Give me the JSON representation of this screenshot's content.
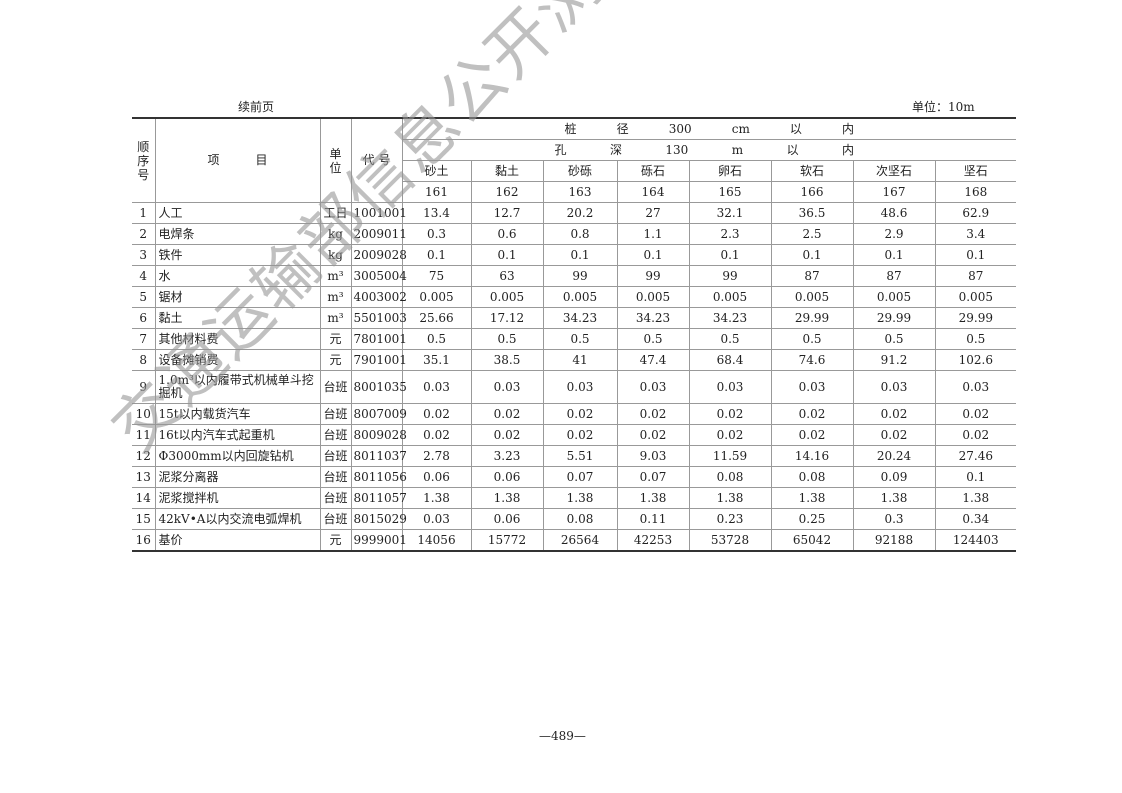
{
  "continued_label": "续前页",
  "unit_note": "单位：10m",
  "headers": {
    "seq": "顺序号",
    "item": "项　　　目",
    "unit": "单位",
    "code": "代 号",
    "span1": [
      "桩",
      "径",
      "300",
      "cm",
      "以",
      "内"
    ],
    "span2": [
      "孔",
      "深",
      "130",
      "m",
      "以",
      "内"
    ],
    "categories": [
      "砂土",
      "黏土",
      "砂砾",
      "砾石",
      "卵石",
      "软石",
      "次坚石",
      "坚石"
    ],
    "numbers": [
      "161",
      "162",
      "163",
      "164",
      "165",
      "166",
      "167",
      "168"
    ]
  },
  "rows": [
    {
      "seq": "1",
      "item": "人工",
      "unit": "工日",
      "code": "1001001",
      "values": [
        "13.4",
        "12.7",
        "20.2",
        "27",
        "32.1",
        "36.5",
        "48.6",
        "62.9"
      ]
    },
    {
      "seq": "2",
      "item": "电焊条",
      "unit": "kg",
      "code": "2009011",
      "values": [
        "0.3",
        "0.6",
        "0.8",
        "1.1",
        "2.3",
        "2.5",
        "2.9",
        "3.4"
      ]
    },
    {
      "seq": "3",
      "item": "铁件",
      "unit": "kg",
      "code": "2009028",
      "values": [
        "0.1",
        "0.1",
        "0.1",
        "0.1",
        "0.1",
        "0.1",
        "0.1",
        "0.1"
      ]
    },
    {
      "seq": "4",
      "item": "水",
      "unit": "m³",
      "code": "3005004",
      "values": [
        "75",
        "63",
        "99",
        "99",
        "99",
        "87",
        "87",
        "87"
      ]
    },
    {
      "seq": "5",
      "item": "锯材",
      "unit": "m³",
      "code": "4003002",
      "values": [
        "0.005",
        "0.005",
        "0.005",
        "0.005",
        "0.005",
        "0.005",
        "0.005",
        "0.005"
      ]
    },
    {
      "seq": "6",
      "item": "黏土",
      "unit": "m³",
      "code": "5501003",
      "values": [
        "25.66",
        "17.12",
        "34.23",
        "34.23",
        "34.23",
        "29.99",
        "29.99",
        "29.99"
      ]
    },
    {
      "seq": "7",
      "item": "其他材料费",
      "unit": "元",
      "code": "7801001",
      "values": [
        "0.5",
        "0.5",
        "0.5",
        "0.5",
        "0.5",
        "0.5",
        "0.5",
        "0.5"
      ]
    },
    {
      "seq": "8",
      "item": "设备摊销费",
      "unit": "元",
      "code": "7901001",
      "values": [
        "35.1",
        "38.5",
        "41",
        "47.4",
        "68.4",
        "74.6",
        "91.2",
        "102.6"
      ]
    },
    {
      "seq": "9",
      "item": "1.0m³以内履带式机械单斗挖掘机",
      "unit": "台班",
      "code": "8001035",
      "values": [
        "0.03",
        "0.03",
        "0.03",
        "0.03",
        "0.03",
        "0.03",
        "0.03",
        "0.03"
      ]
    },
    {
      "seq": "10",
      "item": "15t以内载货汽车",
      "unit": "台班",
      "code": "8007009",
      "values": [
        "0.02",
        "0.02",
        "0.02",
        "0.02",
        "0.02",
        "0.02",
        "0.02",
        "0.02"
      ]
    },
    {
      "seq": "11",
      "item": "16t以内汽车式起重机",
      "unit": "台班",
      "code": "8009028",
      "values": [
        "0.02",
        "0.02",
        "0.02",
        "0.02",
        "0.02",
        "0.02",
        "0.02",
        "0.02"
      ]
    },
    {
      "seq": "12",
      "item": "Φ3000mm以内回旋钻机",
      "unit": "台班",
      "code": "8011037",
      "values": [
        "2.78",
        "3.23",
        "5.51",
        "9.03",
        "11.59",
        "14.16",
        "20.24",
        "27.46"
      ]
    },
    {
      "seq": "13",
      "item": "泥浆分离器",
      "unit": "台班",
      "code": "8011056",
      "values": [
        "0.06",
        "0.06",
        "0.07",
        "0.07",
        "0.08",
        "0.08",
        "0.09",
        "0.1"
      ]
    },
    {
      "seq": "14",
      "item": "泥浆搅拌机",
      "unit": "台班",
      "code": "8011057",
      "values": [
        "1.38",
        "1.38",
        "1.38",
        "1.38",
        "1.38",
        "1.38",
        "1.38",
        "1.38"
      ]
    },
    {
      "seq": "15",
      "item": "42kV•A以内交流电弧焊机",
      "unit": "台班",
      "code": "8015029",
      "values": [
        "0.03",
        "0.06",
        "0.08",
        "0.11",
        "0.23",
        "0.25",
        "0.3",
        "0.34"
      ]
    },
    {
      "seq": "16",
      "item": "基价",
      "unit": "元",
      "code": "9999001",
      "values": [
        "14056",
        "15772",
        "26564",
        "42253",
        "53728",
        "65042",
        "92188",
        "124403"
      ]
    }
  ],
  "page_number": "—489—",
  "watermark": "交通运输部信息公开浏览专用"
}
